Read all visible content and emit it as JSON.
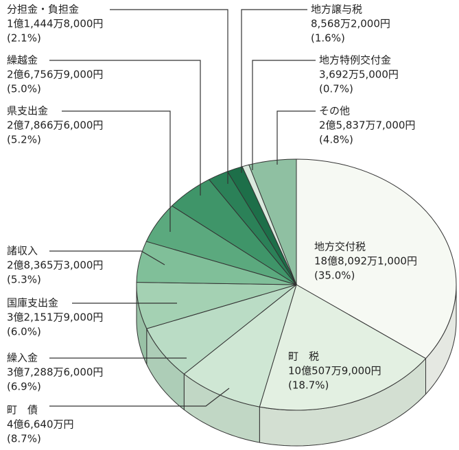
{
  "chart_data": {
    "type": "pie",
    "categories": [
      "地方交付税",
      "町　税",
      "町　債",
      "繰入金",
      "国庫支出金",
      "諸収入",
      "県支出金",
      "繰越金",
      "分担金・負担金",
      "地方譲与税",
      "地方特例交付金",
      "その他"
    ],
    "amounts": [
      "18億8,092万1,000円",
      "10億507万9,000円",
      "4億6,640万円",
      "3億7,288万6,000円",
      "3億2,151万9,000円",
      "2億8,365万3,000円",
      "2億7,866万6,000円",
      "2億6,756万9,000円",
      "1億1,444万8,000円",
      "8,568万2,000円",
      "3,692万5,000円",
      "2億5,837万7,000円"
    ],
    "values": [
      35.0,
      18.7,
      8.7,
      6.9,
      6.0,
      5.3,
      5.2,
      5.0,
      2.1,
      1.6,
      0.7,
      4.8
    ],
    "value_labels": [
      "(35.0%)",
      "(18.7%)",
      "(8.7%)",
      "(6.9%)",
      "(6.0%)",
      "(5.3%)",
      "(5.2%)",
      "(5.0%)",
      "(2.1%)",
      "(1.6%)",
      "(0.7%)",
      "(4.8%)"
    ],
    "colors": [
      "#f6f9f3",
      "#e3f0e2",
      "#cfe7d4",
      "#badcc5",
      "#a4d1b3",
      "#80bf99",
      "#5ba97e",
      "#3f9569",
      "#2b8158",
      "#1d6f49",
      "#d9e9dd",
      "#8fc0a2"
    ]
  }
}
